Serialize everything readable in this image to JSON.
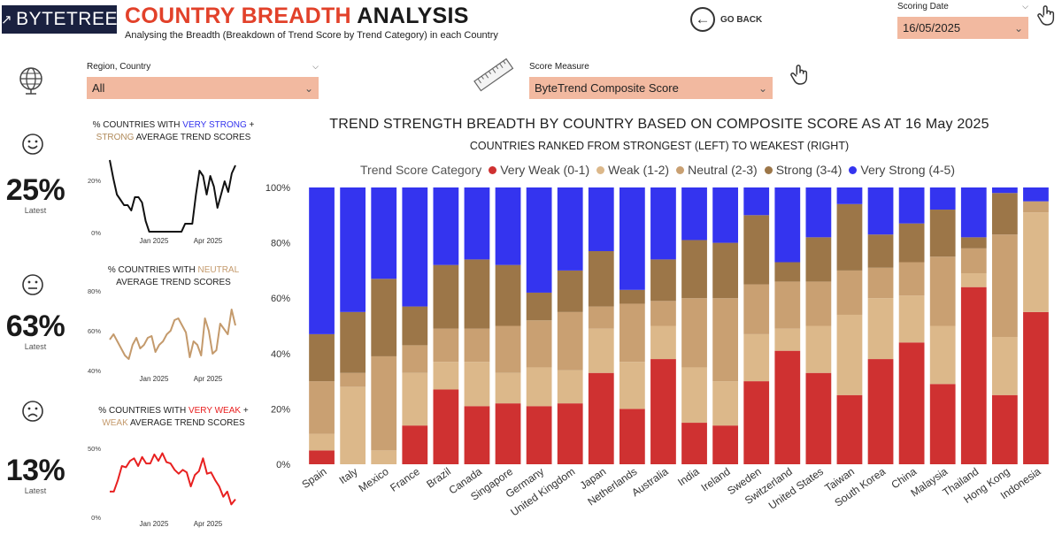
{
  "header": {
    "logo_text": "BYTETREE",
    "title_part1": "COUNTRY BREADTH",
    "title_part2": " ANALYSIS",
    "subtitle": "Analysing the Breadth (Breakdown of Trend Score by Trend Category) in each Country",
    "go_back_label": "GO BACK"
  },
  "scoring_date": {
    "label": "Scoring Date",
    "value": "16/05/2025"
  },
  "region_slicer": {
    "label": "Region, Country",
    "value": "All"
  },
  "score_measure": {
    "label": "Score Measure",
    "value": "ByteTrend Composite Score"
  },
  "colors": {
    "very_weak": "#cf3131",
    "weak": "#dcb88a",
    "neutral": "#c9a072",
    "strong": "#9c7648",
    "very_strong": "#3434ef",
    "slicer_bg": "#f2b9a0",
    "accent": "#e2412a"
  },
  "kpis": [
    {
      "icon": "happy-face-icon",
      "value": "25%",
      "sub": "Latest",
      "title_parts": [
        "% COUNTRIES WITH ",
        "VERY STRONG",
        " +",
        "STRONG",
        " AVERAGE TREND SCORES"
      ],
      "y_ticks": [
        "20%",
        "0%"
      ],
      "x_ticks": [
        "Jan 2025",
        "Apr 2025"
      ],
      "line_color": "#111111",
      "series": [
        27,
        20,
        14,
        12,
        10,
        10,
        8,
        13,
        13,
        11,
        4,
        0,
        0,
        0,
        0,
        0,
        0,
        0,
        0,
        0,
        0,
        3,
        3,
        3,
        14,
        23,
        21,
        14,
        21,
        17,
        9,
        14,
        19,
        15,
        22,
        25
      ],
      "ylim": [
        0,
        30
      ]
    },
    {
      "icon": "neutral-face-icon",
      "value": "63%",
      "sub": "Latest",
      "title_parts": [
        "% COUNTRIES WITH ",
        "NEUTRAL",
        "",
        "",
        "AVERAGE TREND SCORES"
      ],
      "y_ticks": [
        "80%",
        "60%",
        "40%"
      ],
      "x_ticks": [
        "Jan 2025",
        "Apr 2025"
      ],
      "line_color": "#c49a6c",
      "series": [
        55,
        58,
        54,
        50,
        46,
        44,
        52,
        56,
        50,
        52,
        56,
        57,
        48,
        52,
        54,
        58,
        60,
        66,
        67,
        63,
        59,
        45,
        54,
        52,
        46,
        67,
        60,
        47,
        49,
        64,
        61,
        58,
        72,
        63
      ],
      "ylim": [
        38,
        82
      ]
    },
    {
      "icon": "sad-face-icon",
      "value": "13%",
      "sub": "Latest",
      "title_parts": [
        "% COUNTRIES WITH ",
        "VERY WEAK",
        " +",
        "WEAK",
        " AVERAGE TREND SCORES"
      ],
      "y_ticks": [
        "50%",
        "0%"
      ],
      "x_ticks": [
        "Jan 2025",
        "Apr 2025"
      ],
      "line_color": "#e82020",
      "series": [
        18,
        18,
        27,
        38,
        37,
        42,
        44,
        38,
        45,
        40,
        40,
        47,
        42,
        48,
        41,
        40,
        35,
        32,
        35,
        33,
        22,
        31,
        34,
        44,
        32,
        33,
        27,
        22,
        14,
        18,
        8,
        12
      ],
      "ylim": [
        0,
        58
      ]
    }
  ],
  "chart": {
    "title": "TREND STRENGTH BREADTH BY COUNTRY BASED ON COMPOSITE SCORE AS AT 16 May 2025",
    "subtitle": "COUNTRIES RANKED FROM STRONGEST (LEFT) TO WEAKEST (RIGHT)",
    "legend_title": "Trend Score Category"
  },
  "chart_data": {
    "type": "bar",
    "stacked": "percent",
    "y_ticks": [
      "100%",
      "80%",
      "60%",
      "40%",
      "20%",
      "0%"
    ],
    "ylim": [
      0,
      100
    ],
    "categories": [
      "Spain",
      "Italy",
      "Mexico",
      "France",
      "Brazil",
      "Canada",
      "Singapore",
      "Germany",
      "United Kingdom",
      "Japan",
      "Netherlands",
      "Australia",
      "India",
      "Ireland",
      "Sweden",
      "Switzerland",
      "United States",
      "Taiwan",
      "South Korea",
      "China",
      "Malaysia",
      "Thailand",
      "Hong Kong",
      "Indonesia"
    ],
    "series": [
      {
        "name": "Very Weak (0-1)",
        "color": "#cf3131",
        "values": [
          5,
          0,
          0,
          14,
          27,
          21,
          22,
          21,
          22,
          33,
          20,
          38,
          15,
          14,
          30,
          41,
          33,
          25,
          38,
          44,
          29,
          64,
          25,
          55
        ]
      },
      {
        "name": "Weak (1-2)",
        "color": "#dcb88a",
        "values": [
          6,
          28,
          5,
          19,
          10,
          16,
          11,
          14,
          12,
          16,
          17,
          12,
          20,
          16,
          17,
          8,
          17,
          29,
          22,
          17,
          21,
          5,
          21,
          36
        ]
      },
      {
        "name": "Neutral (2-3)",
        "color": "#c9a072",
        "values": [
          19,
          5,
          34,
          10,
          12,
          12,
          17,
          17,
          21,
          8,
          21,
          9,
          25,
          30,
          18,
          17,
          16,
          16,
          11,
          12,
          25,
          9,
          37,
          4
        ]
      },
      {
        "name": "Strong (3-4)",
        "color": "#9c7648",
        "values": [
          17,
          22,
          28,
          14,
          23,
          25,
          22,
          10,
          15,
          20,
          5,
          15,
          21,
          20,
          25,
          7,
          16,
          24,
          12,
          14,
          17,
          4,
          15,
          0
        ]
      },
      {
        "name": "Very Strong (4-5)",
        "color": "#3434ef",
        "values": [
          53,
          45,
          33,
          43,
          28,
          26,
          28,
          38,
          30,
          23,
          37,
          26,
          19,
          20,
          10,
          27,
          18,
          6,
          17,
          13,
          8,
          18,
          2,
          5
        ]
      }
    ]
  }
}
